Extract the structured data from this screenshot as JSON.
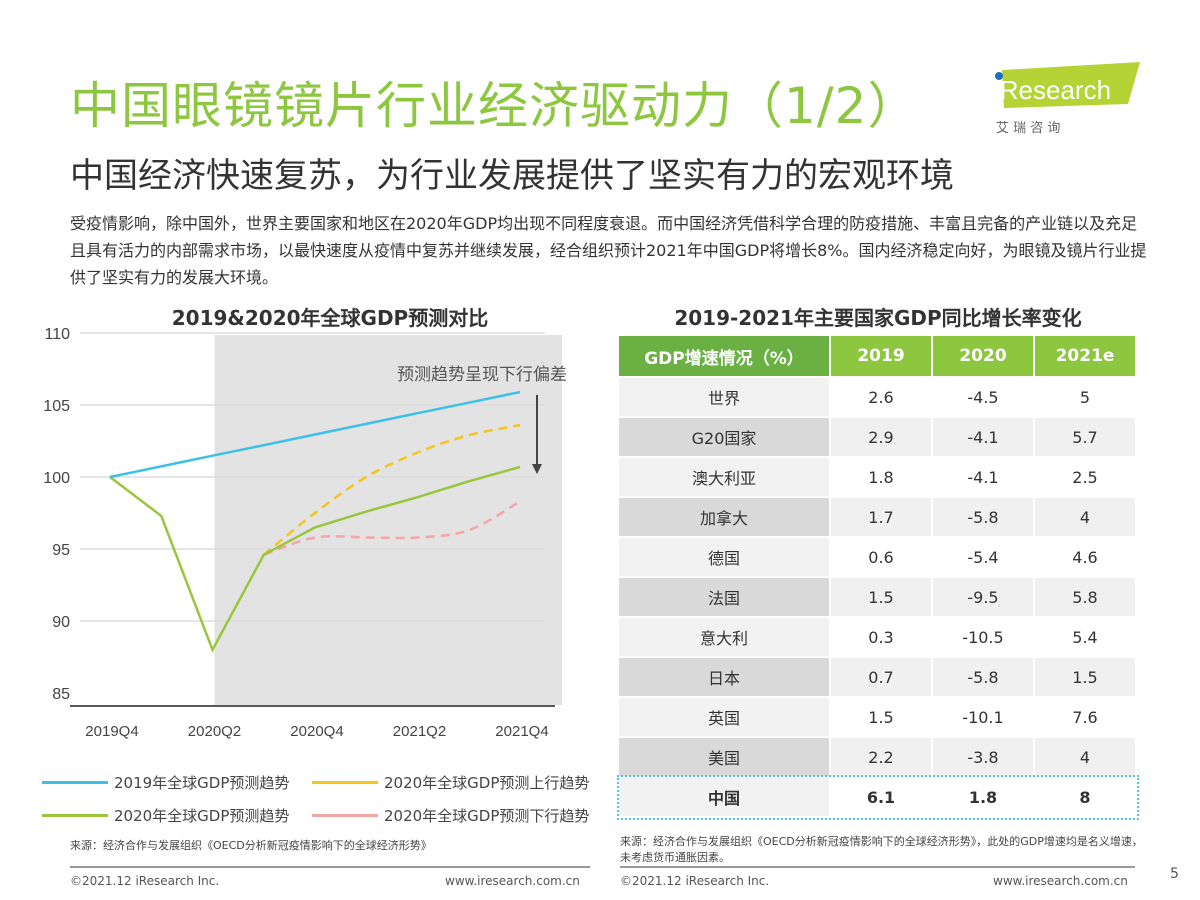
{
  "header": {
    "title": "中国眼镜镜片行业经济驱动力（1/2）",
    "subtitle": "中国经济快速复苏，为行业发展提供了坚实有力的宏观环境",
    "intro": "受疫情影响，除中国外，世界主要国家和地区在2020年GDP均出现不同程度衰退。而中国经济凭借科学合理的防疫措施、丰富且完备的产业链以及充足且具有活力的内部需求市场，以最快速度从疫情中复苏并继续发展，经合组织预计2021年中国GDP将增长8%。国内经济稳定向好，为眼镜及镜片行业提供了坚实有力的发展大环境。",
    "logo_text": "iResearch",
    "logo_cn": "艾 瑞 咨 询"
  },
  "chart_data": {
    "type": "line",
    "title": "2019&2020年全球GDP预测对比",
    "x": [
      "2019Q4",
      "2020Q1",
      "2020Q2",
      "2020Q3",
      "2020Q4",
      "2021Q1",
      "2021Q2",
      "2021Q3",
      "2021Q4"
    ],
    "x_tick_labels": [
      "2019Q4",
      "2020Q2",
      "2020Q4",
      "2021Q2",
      "2021Q4"
    ],
    "ylim": [
      85,
      110
    ],
    "y_ticks": [
      85,
      90,
      95,
      100,
      105,
      110
    ],
    "grid": true,
    "shaded_from": "2020Q2",
    "annotation": "预测趋势呈现下行偏差",
    "legend_position": "bottom",
    "series": [
      {
        "name": "2019年全球GDP预测趋势",
        "color": "#3cc0e8",
        "style": "solid",
        "values": [
          100,
          100.74,
          101.48,
          102.21,
          102.95,
          103.69,
          104.43,
          105.16,
          105.9
        ]
      },
      {
        "name": "2020年全球GDP预测上行趋势",
        "color": "#f5c518",
        "style": "dashed",
        "values": [
          null,
          null,
          null,
          94.6,
          97.5,
          100.0,
          101.7,
          102.9,
          103.6
        ]
      },
      {
        "name": "2020年全球GDP预测趋势",
        "color": "#9bc53d",
        "style": "solid",
        "values": [
          100,
          97.3,
          88.0,
          94.6,
          96.5,
          97.6,
          98.6,
          99.7,
          100.7
        ]
      },
      {
        "name": "2020年全球GDP预测下行趋势",
        "color": "#f4a6a6",
        "style": "dashed",
        "values": [
          null,
          null,
          null,
          94.6,
          95.8,
          95.8,
          95.8,
          96.3,
          98.3
        ]
      }
    ]
  },
  "table": {
    "title": "2019-2021年主要国家GDP同比增长率变化",
    "headers": [
      "GDP增速情况（%）",
      "2019",
      "2020",
      "2021e"
    ],
    "rows": [
      [
        "世界",
        "2.6",
        "-4.5",
        "5"
      ],
      [
        "G20国家",
        "2.9",
        "-4.1",
        "5.7"
      ],
      [
        "澳大利亚",
        "1.8",
        "-4.1",
        "2.5"
      ],
      [
        "加拿大",
        "1.7",
        "-5.8",
        "4"
      ],
      [
        "德国",
        "0.6",
        "-5.4",
        "4.6"
      ],
      [
        "法国",
        "1.5",
        "-9.5",
        "5.8"
      ],
      [
        "意大利",
        "0.3",
        "-10.5",
        "5.4"
      ],
      [
        "日本",
        "0.7",
        "-5.8",
        "1.5"
      ],
      [
        "英国",
        "1.5",
        "-10.1",
        "7.6"
      ],
      [
        "美国",
        "2.2",
        "-3.8",
        "4"
      ],
      [
        "中国",
        "6.1",
        "1.8",
        "8"
      ]
    ],
    "header_color": "#8dc63f",
    "highlight_color": "#4fc3e8"
  },
  "footer": {
    "source_left": "来源：经济合作与发展组织《OECD分析新冠疫情影响下的全球经济形势》",
    "source_right": "来源：经济合作与发展组织《OECD分析新冠疫情影响下的全球经济形势》，此处的GDP增速均是名义增速，未考虑货币通胀因素。",
    "copyright": "©2021.12 iResearch Inc.",
    "url": "www.iresearch.com.cn",
    "page": "5"
  }
}
